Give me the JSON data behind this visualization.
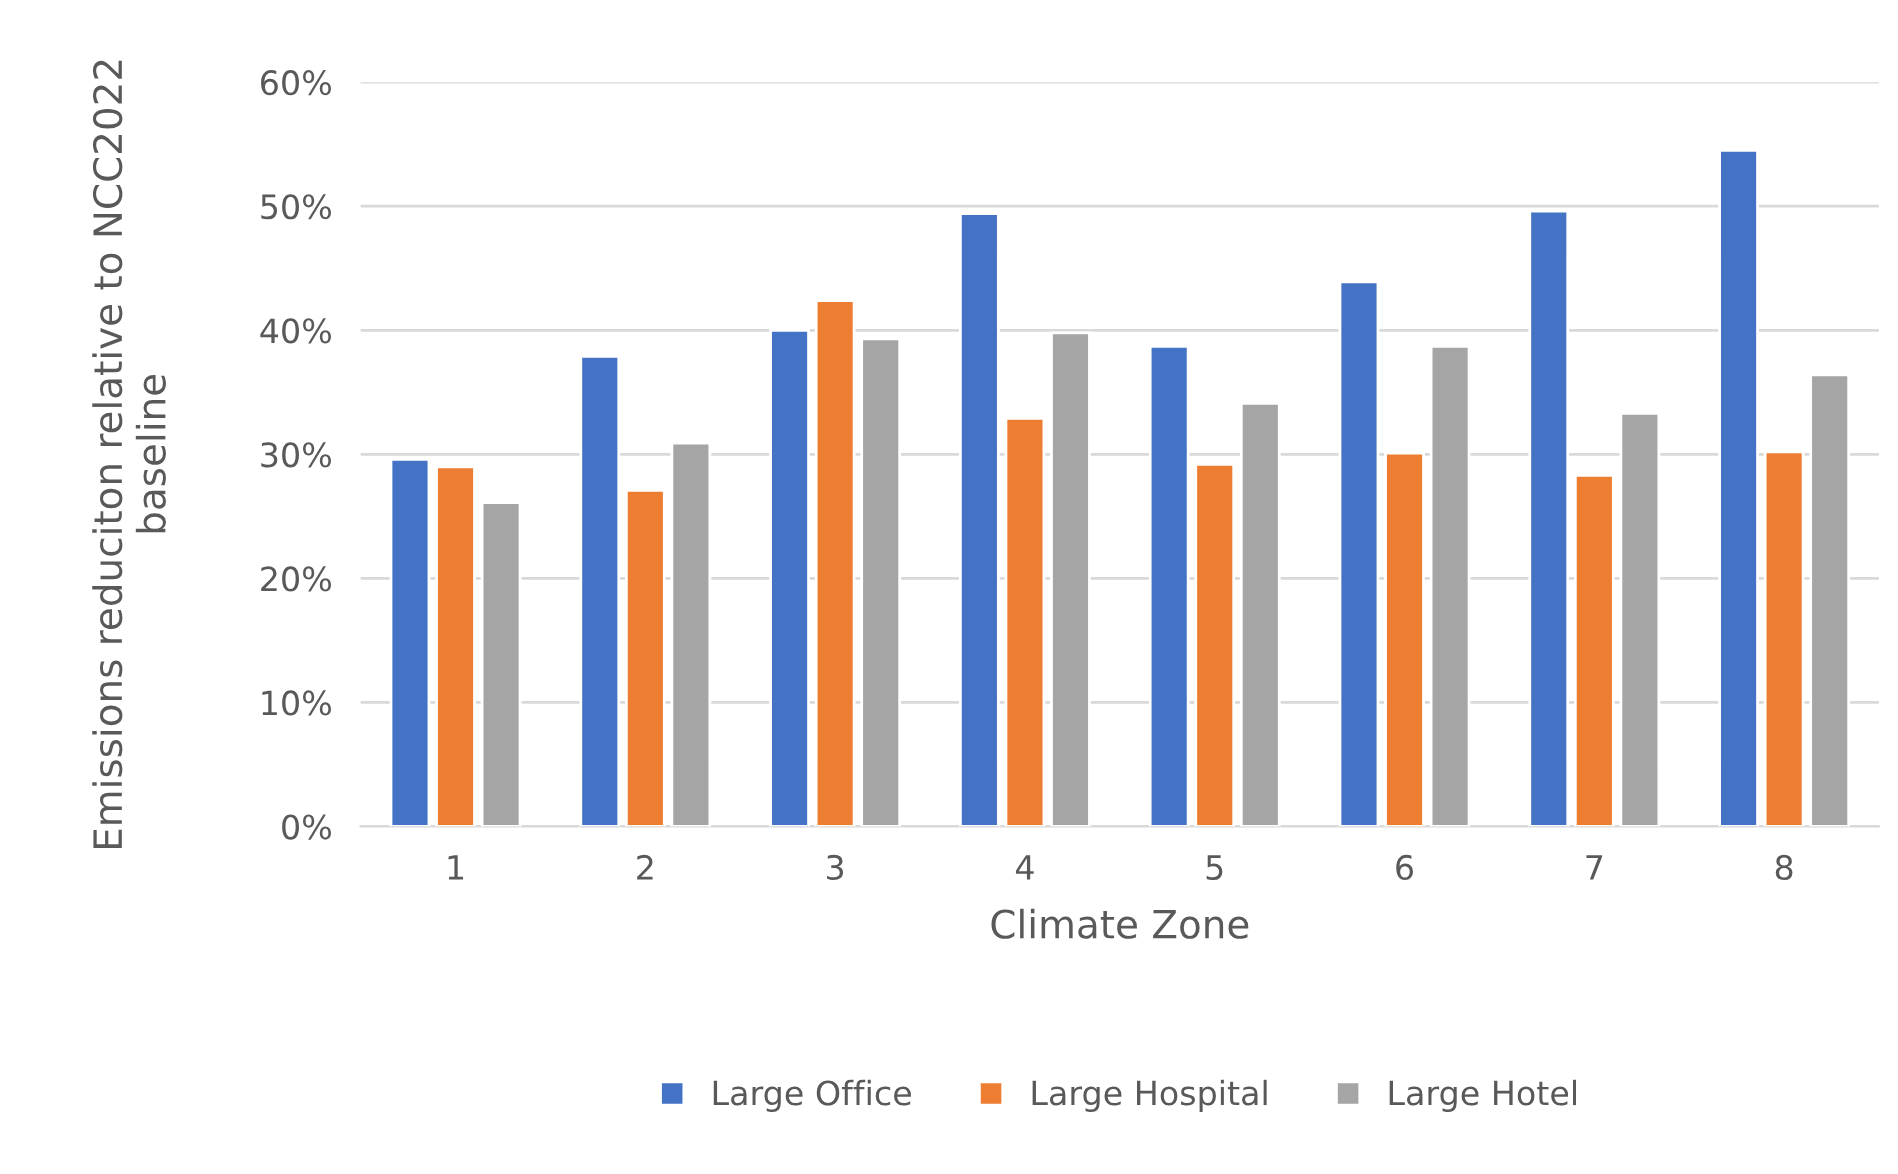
{
  "chart_data": {
    "type": "bar",
    "xlabel": "Climate Zone",
    "ylabel": "Emissions reduciton relative to NCC2022 baseline",
    "categories": [
      "1",
      "2",
      "3",
      "4",
      "5",
      "6",
      "7",
      "8"
    ],
    "series": [
      {
        "name": "Large Office",
        "color": "#4472c4",
        "values": [
          29.6,
          37.9,
          40.0,
          49.4,
          38.7,
          43.9,
          49.6,
          54.5
        ]
      },
      {
        "name": "Large Hospital",
        "color": "#ed7d31",
        "values": [
          29.0,
          27.1,
          42.4,
          32.9,
          29.2,
          30.1,
          28.3,
          30.2
        ]
      },
      {
        "name": "Large Hotel",
        "color": "#a5a5a5",
        "values": [
          26.1,
          30.9,
          39.3,
          39.8,
          34.1,
          38.7,
          33.3,
          36.4
        ]
      }
    ],
    "ylim": [
      0,
      60
    ],
    "yticks": [
      {
        "value": 0,
        "label": "0%"
      },
      {
        "value": 10,
        "label": "10%"
      },
      {
        "value": 20,
        "label": "20%"
      },
      {
        "value": 30,
        "label": "30%"
      },
      {
        "value": 40,
        "label": "40%"
      },
      {
        "value": 50,
        "label": "50%"
      },
      {
        "value": 60,
        "label": "60%"
      }
    ],
    "grid": "y",
    "legend": "bottom"
  }
}
